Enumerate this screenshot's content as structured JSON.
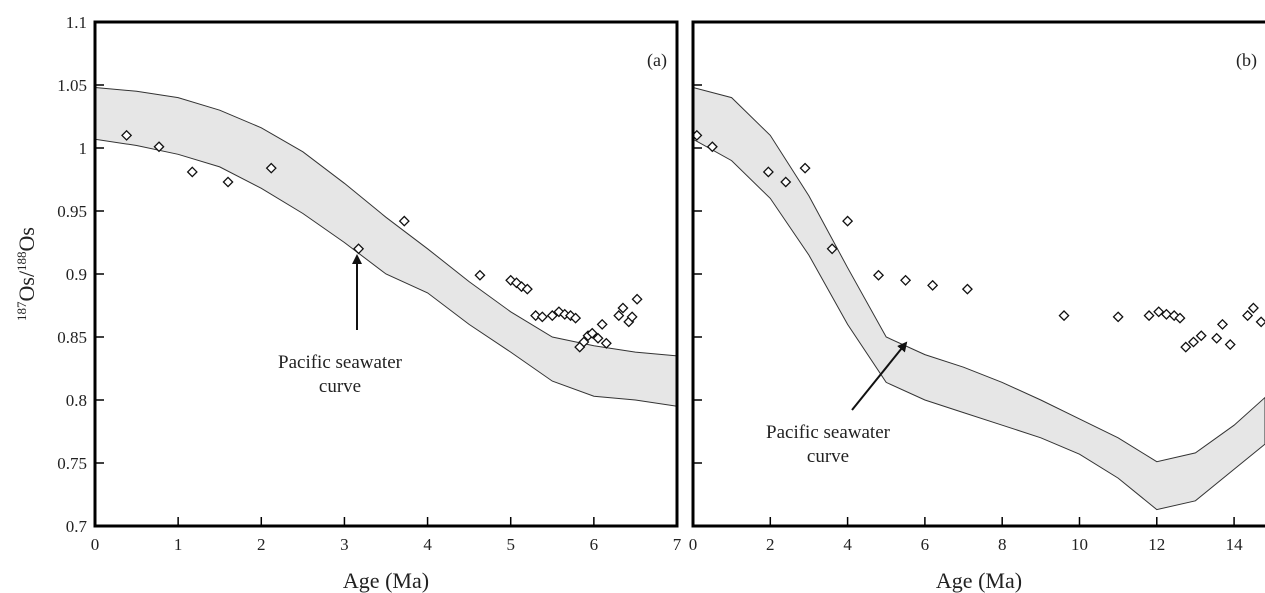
{
  "ylabel": {
    "sup1": "187",
    "main1": "Os/",
    "sup2": "188",
    "main2": "Os"
  },
  "chart_data": [
    {
      "type": "scatter",
      "panel": "(a)",
      "xlabel": "Age (Ma)",
      "xlim": [
        0,
        7
      ],
      "ylim": [
        0.7,
        1.1
      ],
      "xticks": [
        "0",
        "1",
        "2",
        "3",
        "4",
        "5",
        "6",
        "7"
      ],
      "yticks": [
        "0.7",
        "0.75",
        "0.8",
        "0.85",
        "0.9",
        "0.95",
        "1",
        "1.05",
        "1.1"
      ],
      "annotation": {
        "line1": "Pacific seawater",
        "line2": "curve"
      },
      "band": {
        "x": [
          0,
          0.5,
          1,
          1.5,
          2,
          2.5,
          3,
          3.5,
          4,
          4.5,
          5,
          5.5,
          6,
          6.5,
          7
        ],
        "upper": [
          1.048,
          1.045,
          1.04,
          1.03,
          1.016,
          0.997,
          0.972,
          0.945,
          0.92,
          0.894,
          0.87,
          0.85,
          0.843,
          0.838,
          0.835
        ],
        "lower": [
          1.007,
          1.002,
          0.995,
          0.985,
          0.968,
          0.948,
          0.925,
          0.9,
          0.885,
          0.86,
          0.838,
          0.815,
          0.803,
          0.8,
          0.795
        ]
      },
      "points": [
        [
          0.38,
          1.01
        ],
        [
          0.77,
          1.001
        ],
        [
          1.17,
          0.981
        ],
        [
          1.6,
          0.973
        ],
        [
          2.12,
          0.984
        ],
        [
          3.17,
          0.92
        ],
        [
          3.72,
          0.942
        ],
        [
          4.63,
          0.899
        ],
        [
          5.0,
          0.895
        ],
        [
          5.07,
          0.893
        ],
        [
          5.13,
          0.89
        ],
        [
          5.2,
          0.888
        ],
        [
          5.3,
          0.867
        ],
        [
          5.38,
          0.866
        ],
        [
          5.5,
          0.867
        ],
        [
          5.58,
          0.87
        ],
        [
          5.65,
          0.868
        ],
        [
          5.72,
          0.867
        ],
        [
          5.78,
          0.865
        ],
        [
          5.83,
          0.842
        ],
        [
          5.88,
          0.846
        ],
        [
          5.93,
          0.851
        ],
        [
          5.98,
          0.853
        ],
        [
          6.05,
          0.849
        ],
        [
          6.1,
          0.86
        ],
        [
          6.15,
          0.845
        ],
        [
          6.3,
          0.867
        ],
        [
          6.35,
          0.873
        ],
        [
          6.42,
          0.862
        ],
        [
          6.46,
          0.866
        ],
        [
          6.52,
          0.88
        ]
      ]
    },
    {
      "type": "scatter",
      "panel": "(b)",
      "xlabel": "Age (Ma)",
      "xlim": [
        0,
        14.8
      ],
      "ylim": [
        0.7,
        1.1
      ],
      "xticks": [
        "0",
        "2",
        "4",
        "6",
        "8",
        "10",
        "12",
        "14"
      ],
      "xtickValues": [
        0,
        2,
        4,
        6,
        8,
        10,
        12,
        14
      ],
      "annotation": {
        "line1": "Pacific seawater",
        "line2": "curve"
      },
      "band": {
        "x": [
          0,
          1,
          2,
          3,
          4,
          5,
          6,
          7,
          8,
          9,
          10,
          11,
          12,
          13,
          14,
          14.8
        ],
        "upper": [
          1.048,
          1.04,
          1.01,
          0.962,
          0.905,
          0.85,
          0.836,
          0.826,
          0.814,
          0.8,
          0.785,
          0.77,
          0.751,
          0.758,
          0.78,
          0.802
        ],
        "lower": [
          1.007,
          0.99,
          0.96,
          0.915,
          0.86,
          0.814,
          0.8,
          0.79,
          0.78,
          0.77,
          0.757,
          0.738,
          0.713,
          0.72,
          0.745,
          0.765
        ]
      },
      "points": [
        [
          0.1,
          1.01
        ],
        [
          0.5,
          1.001
        ],
        [
          1.95,
          0.981
        ],
        [
          2.4,
          0.973
        ],
        [
          2.9,
          0.984
        ],
        [
          3.6,
          0.92
        ],
        [
          4.0,
          0.942
        ],
        [
          4.8,
          0.899
        ],
        [
          5.5,
          0.895
        ],
        [
          6.2,
          0.891
        ],
        [
          7.1,
          0.888
        ],
        [
          9.6,
          0.867
        ],
        [
          11.0,
          0.866
        ],
        [
          11.8,
          0.867
        ],
        [
          12.05,
          0.87
        ],
        [
          12.25,
          0.868
        ],
        [
          12.45,
          0.867
        ],
        [
          12.6,
          0.865
        ],
        [
          12.75,
          0.842
        ],
        [
          12.95,
          0.846
        ],
        [
          13.15,
          0.851
        ],
        [
          13.55,
          0.849
        ],
        [
          13.7,
          0.86
        ],
        [
          13.9,
          0.844
        ],
        [
          14.35,
          0.867
        ],
        [
          14.5,
          0.873
        ],
        [
          14.7,
          0.862
        ]
      ]
    }
  ]
}
